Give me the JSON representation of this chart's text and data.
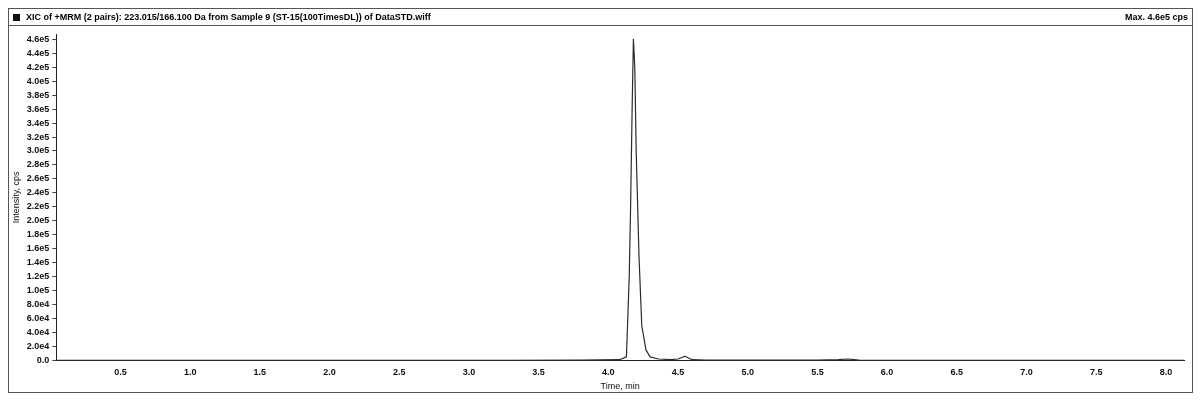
{
  "chart_data": {
    "type": "line",
    "title": "XIC of +MRM (2 pairs): 223.015/166.100 Da  from Sample 9 (ST-15(100TimesDL)) of DataSTD.wiff",
    "xlabel": "Time, min",
    "ylabel": "Intensity, cps",
    "annotations": [
      "Max. 4.6e5 cps"
    ],
    "series": [
      {
        "color": "#2b2b2b",
        "x": [
          0.04,
          1.0,
          2.0,
          3.0,
          3.8,
          4.08,
          4.13,
          4.15,
          4.16,
          4.17,
          4.18,
          4.19,
          4.2,
          4.22,
          4.24,
          4.27,
          4.3,
          4.36,
          4.45,
          4.5,
          4.55,
          4.6,
          4.7,
          5.5,
          5.65,
          5.72,
          5.8,
          6.5,
          7.5,
          8.13
        ],
        "values": [
          0,
          0,
          0,
          0,
          500,
          1000,
          5000,
          120000.0,
          220000.0,
          350000.0,
          460000.0,
          420000.0,
          300000.0,
          150000.0,
          50000.0,
          15000.0,
          5000,
          2000,
          1000,
          2000,
          6000,
          1000,
          500,
          500,
          1000,
          2000,
          500,
          0,
          0,
          0
        ]
      }
    ],
    "xlim": [
      0.04,
      8.13
    ],
    "ylim": [
      0,
      467000.0
    ],
    "xticks": [
      {
        "value": 0.5,
        "label": "0.5"
      },
      {
        "value": 1,
        "label": "1.0"
      },
      {
        "value": 1.5,
        "label": "1.5"
      },
      {
        "value": 2,
        "label": "2.0"
      },
      {
        "value": 2.5,
        "label": "2.5"
      },
      {
        "value": 3,
        "label": "3.0"
      },
      {
        "value": 3.5,
        "label": "3.5"
      },
      {
        "value": 4,
        "label": "4.0"
      },
      {
        "value": 4.5,
        "label": "4.5"
      },
      {
        "value": 5,
        "label": "5.0"
      },
      {
        "value": 5.5,
        "label": "5.5"
      },
      {
        "value": 6,
        "label": "6.0"
      },
      {
        "value": 6.5,
        "label": "6.5"
      },
      {
        "value": 7,
        "label": "7.0"
      },
      {
        "value": 7.5,
        "label": "7.5"
      },
      {
        "value": 8,
        "label": "8.0"
      }
    ],
    "yticks": [
      {
        "value": 0,
        "label": "0.0"
      },
      {
        "value": 20000,
        "label": "2.0e4"
      },
      {
        "value": 40000,
        "label": "4.0e4"
      },
      {
        "value": 60000,
        "label": "6.0e4"
      },
      {
        "value": 80000,
        "label": "8.0e4"
      },
      {
        "value": 100000,
        "label": "1.0e5"
      },
      {
        "value": 120000,
        "label": "1.2e5"
      },
      {
        "value": 140000,
        "label": "1.4e5"
      },
      {
        "value": 160000,
        "label": "1.6e5"
      },
      {
        "value": 180000,
        "label": "1.8e5"
      },
      {
        "value": 200000,
        "label": "2.0e5"
      },
      {
        "value": 220000,
        "label": "2.2e5"
      },
      {
        "value": 240000,
        "label": "2.4e5"
      },
      {
        "value": 260000,
        "label": "2.6e5"
      },
      {
        "value": 280000,
        "label": "2.8e5"
      },
      {
        "value": 300000,
        "label": "3.0e5"
      },
      {
        "value": 320000,
        "label": "3.2e5"
      },
      {
        "value": 340000,
        "label": "3.4e5"
      },
      {
        "value": 360000,
        "label": "3.6e5"
      },
      {
        "value": 380000,
        "label": "3.8e5"
      },
      {
        "value": 400000,
        "label": "4.0e5"
      },
      {
        "value": 420000,
        "label": "4.2e5"
      },
      {
        "value": 440000,
        "label": "4.4e5"
      },
      {
        "value": 460000,
        "label": "4.6e5"
      }
    ],
    "grid": false,
    "legend": false,
    "marker": "none",
    "line_style": "solid"
  }
}
